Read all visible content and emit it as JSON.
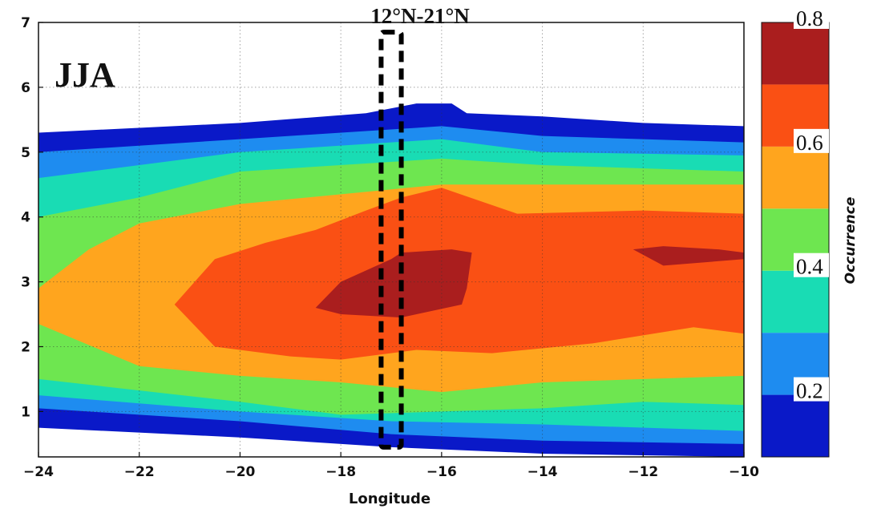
{
  "chart_data": {
    "type": "filled-contour",
    "season_label": "JJA",
    "band_label": "12°N-21°N",
    "band_x": [
      -17.2,
      -16.8
    ],
    "band_y": [
      0.45,
      6.85
    ],
    "xlabel": "Longitude",
    "ylabel": "",
    "xlim": [
      -24,
      -10
    ],
    "ylim": [
      0.3,
      7
    ],
    "x_ticks": [
      -24,
      -22,
      -20,
      -18,
      -16,
      -14,
      -12,
      -10
    ],
    "y_ticks": [
      1,
      2,
      3,
      4,
      5,
      6,
      7
    ],
    "grid": true,
    "colorbar": {
      "title": "Occurrence",
      "ticks": [
        0.2,
        0.4,
        0.6,
        0.8
      ],
      "levels": [
        0.1,
        0.2,
        0.3,
        0.4,
        0.5,
        0.6,
        0.7,
        0.8
      ],
      "colors": [
        "#0a19c8",
        "#1e8cf0",
        "#19dcb4",
        "#6ee650",
        "#ffa51e",
        "#fa5014",
        "#aa1e1e"
      ]
    },
    "contour_regions": [
      {
        "level": 0.1,
        "points": [
          [
            -24,
            5.3
          ],
          [
            -20,
            5.45
          ],
          [
            -17.5,
            5.6
          ],
          [
            -16.5,
            5.75
          ],
          [
            -15.8,
            5.75
          ],
          [
            -15.5,
            5.6
          ],
          [
            -14,
            5.55
          ],
          [
            -12,
            5.45
          ],
          [
            -10,
            5.4
          ],
          [
            -10,
            0.3
          ],
          [
            -14,
            0.35
          ],
          [
            -17,
            0.45
          ],
          [
            -20,
            0.6
          ],
          [
            -24,
            0.75
          ]
        ]
      },
      {
        "level": 0.2,
        "points": [
          [
            -24,
            5.0
          ],
          [
            -20,
            5.2
          ],
          [
            -16,
            5.4
          ],
          [
            -14,
            5.25
          ],
          [
            -10,
            5.15
          ],
          [
            -10,
            0.5
          ],
          [
            -14,
            0.55
          ],
          [
            -17,
            0.65
          ],
          [
            -20,
            0.85
          ],
          [
            -24,
            1.05
          ]
        ]
      },
      {
        "level": 0.3,
        "points": [
          [
            -24,
            4.6
          ],
          [
            -20,
            5.0
          ],
          [
            -16,
            5.2
          ],
          [
            -14,
            5.0
          ],
          [
            -10,
            4.95
          ],
          [
            -10,
            0.7
          ],
          [
            -14,
            0.8
          ],
          [
            -17,
            0.85
          ],
          [
            -20,
            1.0
          ],
          [
            -24,
            1.25
          ]
        ]
      },
      {
        "level": 0.4,
        "points": [
          [
            -24,
            4.0
          ],
          [
            -22,
            4.3
          ],
          [
            -20,
            4.7
          ],
          [
            -16,
            4.9
          ],
          [
            -14,
            4.8
          ],
          [
            -10,
            4.7
          ],
          [
            -10,
            1.1
          ],
          [
            -12,
            1.15
          ],
          [
            -14,
            1.05
          ],
          [
            -16,
            1.0
          ],
          [
            -18,
            0.95
          ],
          [
            -20,
            1.15
          ],
          [
            -24,
            1.5
          ]
        ]
      },
      {
        "level": 0.5,
        "points": [
          [
            -24,
            2.9
          ],
          [
            -23,
            3.5
          ],
          [
            -22,
            3.9
          ],
          [
            -20,
            4.2
          ],
          [
            -18,
            4.35
          ],
          [
            -16,
            4.5
          ],
          [
            -14,
            4.5
          ],
          [
            -10,
            4.5
          ],
          [
            -10,
            1.55
          ],
          [
            -12,
            1.5
          ],
          [
            -14,
            1.45
          ],
          [
            -16,
            1.3
          ],
          [
            -18,
            1.45
          ],
          [
            -20,
            1.55
          ],
          [
            -22,
            1.7
          ],
          [
            -24,
            2.35
          ]
        ]
      },
      {
        "level": 0.6,
        "points": [
          [
            -21.3,
            2.65
          ],
          [
            -20.5,
            3.35
          ],
          [
            -19.5,
            3.6
          ],
          [
            -18.5,
            3.8
          ],
          [
            -17.5,
            4.1
          ],
          [
            -16.8,
            4.3
          ],
          [
            -16,
            4.45
          ],
          [
            -14.5,
            4.05
          ],
          [
            -12,
            4.1
          ],
          [
            -10,
            4.05
          ],
          [
            -10,
            2.2
          ],
          [
            -11,
            2.3
          ],
          [
            -13,
            2.05
          ],
          [
            -15,
            1.9
          ],
          [
            -16.5,
            1.95
          ],
          [
            -18,
            1.8
          ],
          [
            -19,
            1.85
          ],
          [
            -20.5,
            2.0
          ]
        ]
      },
      {
        "level": 0.7,
        "points": [
          [
            -18.5,
            2.6
          ],
          [
            -18,
            3.0
          ],
          [
            -17,
            3.35
          ],
          [
            -16.8,
            3.45
          ],
          [
            -15.8,
            3.5
          ],
          [
            -15.4,
            3.45
          ],
          [
            -15.5,
            2.9
          ],
          [
            -15.6,
            2.65
          ],
          [
            -16.8,
            2.45
          ],
          [
            -18.0,
            2.5
          ]
        ]
      },
      {
        "level": 0.7,
        "points": [
          [
            -12.2,
            3.5
          ],
          [
            -11.6,
            3.55
          ],
          [
            -10.5,
            3.5
          ],
          [
            -10,
            3.45
          ],
          [
            -10,
            3.35
          ],
          [
            -11.6,
            3.25
          ]
        ]
      }
    ]
  }
}
